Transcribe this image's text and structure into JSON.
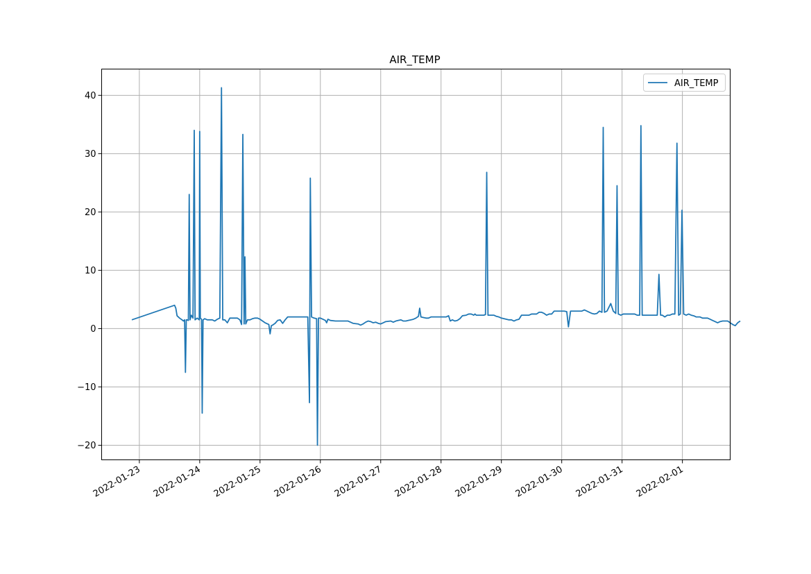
{
  "chart_data": {
    "type": "line",
    "title": "AIR_TEMP",
    "xlabel": "",
    "ylabel": "",
    "x_type": "date",
    "xlim": [
      "2022-01-22T09:00",
      "2022-02-01T19:00"
    ],
    "ylim": [
      -22.5,
      44.5
    ],
    "x_ticks": [
      "2022-01-23",
      "2022-01-24",
      "2022-01-25",
      "2022-01-26",
      "2022-01-27",
      "2022-01-28",
      "2022-01-29",
      "2022-01-30",
      "2022-01-31",
      "2022-02-01"
    ],
    "y_ticks": [
      -20,
      -10,
      0,
      10,
      20,
      30,
      40
    ],
    "grid": true,
    "legend": "top-right",
    "series": [
      {
        "name": "AIR_TEMP",
        "color": "#1f77b4",
        "points": [
          [
            "2022-01-22T21:00",
            1.5
          ],
          [
            "2022-01-23T14:00",
            4.0
          ],
          [
            "2022-01-23T14:30",
            3.5
          ],
          [
            "2022-01-23T15:00",
            2.2
          ],
          [
            "2022-01-23T16:00",
            1.8
          ],
          [
            "2022-01-23T17:00",
            1.5
          ],
          [
            "2022-01-23T17:30",
            1.3
          ],
          [
            "2022-01-23T18:00",
            1.5
          ],
          [
            "2022-01-23T18:20",
            -7.5
          ],
          [
            "2022-01-23T18:40",
            1.5
          ],
          [
            "2022-01-23T19:00",
            1.5
          ],
          [
            "2022-01-23T19:30",
            1.4
          ],
          [
            "2022-01-23T19:50",
            23.0
          ],
          [
            "2022-01-23T20:10",
            1.5
          ],
          [
            "2022-01-23T20:40",
            2.3
          ],
          [
            "2022-01-23T21:20",
            1.8
          ],
          [
            "2022-01-23T21:50",
            34.0
          ],
          [
            "2022-01-23T22:10",
            1.5
          ],
          [
            "2022-01-23T23:00",
            1.8
          ],
          [
            "2022-01-23T23:50",
            1.5
          ],
          [
            "2022-01-24T00:00",
            33.8
          ],
          [
            "2022-01-24T00:15",
            1.8
          ],
          [
            "2022-01-24T00:45",
            1.6
          ],
          [
            "2022-01-24T01:00",
            -14.5
          ],
          [
            "2022-01-24T01:20",
            1.5
          ],
          [
            "2022-01-24T02:00",
            1.7
          ],
          [
            "2022-01-24T03:00",
            1.5
          ],
          [
            "2022-01-24T04:00",
            1.5
          ],
          [
            "2022-01-24T05:00",
            1.5
          ],
          [
            "2022-01-24T06:00",
            1.3
          ],
          [
            "2022-01-24T07:00",
            1.6
          ],
          [
            "2022-01-24T08:00",
            1.8
          ],
          [
            "2022-01-24T08:40",
            41.3
          ],
          [
            "2022-01-24T09:10",
            1.5
          ],
          [
            "2022-01-24T10:00",
            1.5
          ],
          [
            "2022-01-24T11:00",
            1.0
          ],
          [
            "2022-01-24T12:00",
            1.8
          ],
          [
            "2022-01-24T13:00",
            1.8
          ],
          [
            "2022-01-24T14:00",
            1.8
          ],
          [
            "2022-01-24T15:00",
            1.8
          ],
          [
            "2022-01-24T16:00",
            1.5
          ],
          [
            "2022-01-24T16:40",
            0.7
          ],
          [
            "2022-01-24T17:10",
            33.3
          ],
          [
            "2022-01-24T17:40",
            0.8
          ],
          [
            "2022-01-24T18:00",
            12.3
          ],
          [
            "2022-01-24T18:20",
            0.8
          ],
          [
            "2022-01-24T19:00",
            1.5
          ],
          [
            "2022-01-24T20:00",
            1.5
          ],
          [
            "2022-01-24T21:00",
            1.7
          ],
          [
            "2022-01-24T22:00",
            1.8
          ],
          [
            "2022-01-24T23:00",
            1.8
          ],
          [
            "2022-01-25T00:00",
            1.6
          ],
          [
            "2022-01-25T01:00",
            1.3
          ],
          [
            "2022-01-25T02:00",
            1.0
          ],
          [
            "2022-01-25T03:00",
            0.8
          ],
          [
            "2022-01-25T03:30",
            0.7
          ],
          [
            "2022-01-25T04:00",
            -0.9
          ],
          [
            "2022-01-25T04:30",
            0.5
          ],
          [
            "2022-01-25T05:00",
            0.6
          ],
          [
            "2022-01-25T06:00",
            0.9
          ],
          [
            "2022-01-25T07:00",
            1.4
          ],
          [
            "2022-01-25T08:00",
            1.5
          ],
          [
            "2022-01-25T09:00",
            0.9
          ],
          [
            "2022-01-25T10:00",
            1.5
          ],
          [
            "2022-01-25T11:00",
            2.0
          ],
          [
            "2022-01-25T13:00",
            2.0
          ],
          [
            "2022-01-25T15:00",
            2.0
          ],
          [
            "2022-01-25T17:00",
            2.0
          ],
          [
            "2022-01-25T19:00",
            2.0
          ],
          [
            "2022-01-25T19:40",
            -12.7
          ],
          [
            "2022-01-25T20:00",
            25.8
          ],
          [
            "2022-01-25T20:30",
            2.0
          ],
          [
            "2022-01-25T21:30",
            1.8
          ],
          [
            "2022-01-25T22:30",
            1.7
          ],
          [
            "2022-01-25T22:50",
            -20.0
          ],
          [
            "2022-01-25T23:15",
            1.8
          ],
          [
            "2022-01-26T00:00",
            1.8
          ],
          [
            "2022-01-26T01:00",
            1.6
          ],
          [
            "2022-01-26T02:00",
            1.4
          ],
          [
            "2022-01-26T02:30",
            1.0
          ],
          [
            "2022-01-26T03:00",
            1.6
          ],
          [
            "2022-01-26T04:00",
            1.4
          ],
          [
            "2022-01-26T06:00",
            1.3
          ],
          [
            "2022-01-26T09:00",
            1.3
          ],
          [
            "2022-01-26T11:00",
            1.3
          ],
          [
            "2022-01-26T13:00",
            0.9
          ],
          [
            "2022-01-26T15:00",
            0.8
          ],
          [
            "2022-01-26T16:00",
            0.6
          ],
          [
            "2022-01-26T17:00",
            0.8
          ],
          [
            "2022-01-26T18:00",
            1.1
          ],
          [
            "2022-01-26T19:00",
            1.3
          ],
          [
            "2022-01-26T20:00",
            1.2
          ],
          [
            "2022-01-26T21:00",
            1.0
          ],
          [
            "2022-01-26T22:00",
            1.1
          ],
          [
            "2022-01-26T23:00",
            0.9
          ],
          [
            "2022-01-27T00:00",
            0.8
          ],
          [
            "2022-01-27T01:00",
            1.0
          ],
          [
            "2022-01-27T02:00",
            1.2
          ],
          [
            "2022-01-27T04:00",
            1.3
          ],
          [
            "2022-01-27T05:00",
            1.1
          ],
          [
            "2022-01-27T06:00",
            1.3
          ],
          [
            "2022-01-27T07:00",
            1.4
          ],
          [
            "2022-01-27T08:00",
            1.5
          ],
          [
            "2022-01-27T09:00",
            1.3
          ],
          [
            "2022-01-27T10:00",
            1.3
          ],
          [
            "2022-01-27T11:00",
            1.4
          ],
          [
            "2022-01-27T12:00",
            1.5
          ],
          [
            "2022-01-27T13:00",
            1.6
          ],
          [
            "2022-01-27T14:00",
            1.8
          ],
          [
            "2022-01-27T15:00",
            2.1
          ],
          [
            "2022-01-27T15:30",
            3.5
          ],
          [
            "2022-01-27T16:00",
            2.0
          ],
          [
            "2022-01-27T17:00",
            1.9
          ],
          [
            "2022-01-27T18:00",
            1.8
          ],
          [
            "2022-01-27T19:00",
            1.8
          ],
          [
            "2022-01-27T20:00",
            2.0
          ],
          [
            "2022-01-27T22:00",
            2.0
          ],
          [
            "2022-01-28T00:00",
            2.0
          ],
          [
            "2022-01-28T02:00",
            2.0
          ],
          [
            "2022-01-28T03:00",
            2.2
          ],
          [
            "2022-01-28T03:40",
            1.3
          ],
          [
            "2022-01-28T04:30",
            1.5
          ],
          [
            "2022-01-28T05:30",
            1.3
          ],
          [
            "2022-01-28T06:30",
            1.4
          ],
          [
            "2022-01-28T07:30",
            1.7
          ],
          [
            "2022-01-28T08:30",
            2.2
          ],
          [
            "2022-01-28T10:00",
            2.3
          ],
          [
            "2022-01-28T11:00",
            2.5
          ],
          [
            "2022-01-28T12:00",
            2.5
          ],
          [
            "2022-01-28T13:00",
            2.3
          ],
          [
            "2022-01-28T13:30",
            2.5
          ],
          [
            "2022-01-28T14:00",
            2.3
          ],
          [
            "2022-01-28T15:00",
            2.3
          ],
          [
            "2022-01-28T16:00",
            2.3
          ],
          [
            "2022-01-28T17:00",
            2.3
          ],
          [
            "2022-01-28T17:40",
            2.4
          ],
          [
            "2022-01-28T18:10",
            26.8
          ],
          [
            "2022-01-28T18:40",
            2.3
          ],
          [
            "2022-01-28T20:00",
            2.3
          ],
          [
            "2022-01-28T21:00",
            2.3
          ],
          [
            "2022-01-28T22:00",
            2.1
          ],
          [
            "2022-01-28T23:00",
            2.0
          ],
          [
            "2022-01-29T00:00",
            1.8
          ],
          [
            "2022-01-29T01:00",
            1.7
          ],
          [
            "2022-01-29T02:00",
            1.6
          ],
          [
            "2022-01-29T03:00",
            1.5
          ],
          [
            "2022-01-29T04:00",
            1.5
          ],
          [
            "2022-01-29T05:00",
            1.3
          ],
          [
            "2022-01-29T06:00",
            1.5
          ],
          [
            "2022-01-29T07:00",
            1.6
          ],
          [
            "2022-01-29T08:00",
            2.3
          ],
          [
            "2022-01-29T10:00",
            2.3
          ],
          [
            "2022-01-29T11:00",
            2.3
          ],
          [
            "2022-01-29T12:00",
            2.5
          ],
          [
            "2022-01-29T14:00",
            2.5
          ],
          [
            "2022-01-29T15:00",
            2.8
          ],
          [
            "2022-01-29T16:00",
            2.8
          ],
          [
            "2022-01-29T17:00",
            2.6
          ],
          [
            "2022-01-29T18:00",
            2.3
          ],
          [
            "2022-01-29T19:00",
            2.5
          ],
          [
            "2022-01-29T20:00",
            2.5
          ],
          [
            "2022-01-29T21:00",
            3.0
          ],
          [
            "2022-01-29T23:00",
            3.0
          ],
          [
            "2022-01-30T01:00",
            3.0
          ],
          [
            "2022-01-30T02:00",
            2.9
          ],
          [
            "2022-01-30T02:40",
            0.3
          ],
          [
            "2022-01-30T03:30",
            3.0
          ],
          [
            "2022-01-30T05:00",
            3.0
          ],
          [
            "2022-01-30T07:00",
            3.0
          ],
          [
            "2022-01-30T08:00",
            3.0
          ],
          [
            "2022-01-30T09:00",
            3.2
          ],
          [
            "2022-01-30T10:00",
            3.0
          ],
          [
            "2022-01-30T11:00",
            2.8
          ],
          [
            "2022-01-30T12:00",
            2.6
          ],
          [
            "2022-01-30T13:00",
            2.5
          ],
          [
            "2022-01-30T14:00",
            2.6
          ],
          [
            "2022-01-30T15:00",
            3.0
          ],
          [
            "2022-01-30T16:00",
            2.8
          ],
          [
            "2022-01-30T16:30",
            34.5
          ],
          [
            "2022-01-30T17:00",
            2.8
          ],
          [
            "2022-01-30T18:00",
            3.0
          ],
          [
            "2022-01-30T19:30",
            4.3
          ],
          [
            "2022-01-30T20:30",
            3.0
          ],
          [
            "2022-01-30T21:30",
            2.6
          ],
          [
            "2022-01-30T22:00",
            24.5
          ],
          [
            "2022-01-30T22:30",
            2.5
          ],
          [
            "2022-01-30T23:30",
            2.3
          ],
          [
            "2022-01-31T00:30",
            2.5
          ],
          [
            "2022-01-31T02:00",
            2.5
          ],
          [
            "2022-01-31T04:00",
            2.5
          ],
          [
            "2022-01-31T05:00",
            2.5
          ],
          [
            "2022-01-31T06:00",
            2.3
          ],
          [
            "2022-01-31T07:00",
            2.3
          ],
          [
            "2022-01-31T07:30",
            34.8
          ],
          [
            "2022-01-31T08:00",
            2.3
          ],
          [
            "2022-01-31T10:00",
            2.3
          ],
          [
            "2022-01-31T12:00",
            2.3
          ],
          [
            "2022-01-31T13:00",
            2.3
          ],
          [
            "2022-01-31T14:00",
            2.3
          ],
          [
            "2022-01-31T14:40",
            9.3
          ],
          [
            "2022-01-31T15:20",
            2.3
          ],
          [
            "2022-01-31T16:00",
            2.3
          ],
          [
            "2022-01-31T17:00",
            2.0
          ],
          [
            "2022-01-31T18:00",
            2.3
          ],
          [
            "2022-01-31T19:00",
            2.3
          ],
          [
            "2022-01-31T20:00",
            2.5
          ],
          [
            "2022-01-31T21:00",
            2.5
          ],
          [
            "2022-01-31T21:50",
            31.8
          ],
          [
            "2022-01-31T22:30",
            2.3
          ],
          [
            "2022-01-31T23:10",
            2.5
          ],
          [
            "2022-01-31T23:50",
            20.3
          ],
          [
            "2022-02-01T00:30",
            2.5
          ],
          [
            "2022-02-01T01:30",
            2.3
          ],
          [
            "2022-02-01T02:30",
            2.5
          ],
          [
            "2022-02-01T03:30",
            2.3
          ],
          [
            "2022-02-01T04:30",
            2.2
          ],
          [
            "2022-02-01T05:30",
            2.0
          ],
          [
            "2022-02-01T07:00",
            2.0
          ],
          [
            "2022-02-01T08:00",
            1.8
          ],
          [
            "2022-02-01T09:00",
            1.8
          ],
          [
            "2022-02-01T10:00",
            1.8
          ],
          [
            "2022-02-01T11:00",
            1.6
          ],
          [
            "2022-02-01T12:00",
            1.4
          ],
          [
            "2022-02-01T13:00",
            1.2
          ],
          [
            "2022-02-01T14:00",
            1.0
          ],
          [
            "2022-02-01T15:00",
            1.2
          ],
          [
            "2022-02-01T16:00",
            1.3
          ],
          [
            "2022-02-01T17:00",
            1.3
          ],
          [
            "2022-02-01T18:00",
            1.3
          ],
          [
            "2022-02-01T19:00",
            1.0
          ],
          [
            "2022-02-01T20:00",
            0.7
          ],
          [
            "2022-02-01T21:00",
            0.5
          ],
          [
            "2022-02-01T22:00",
            1.0
          ],
          [
            "2022-02-01T23:00",
            1.3
          ]
        ]
      }
    ]
  }
}
